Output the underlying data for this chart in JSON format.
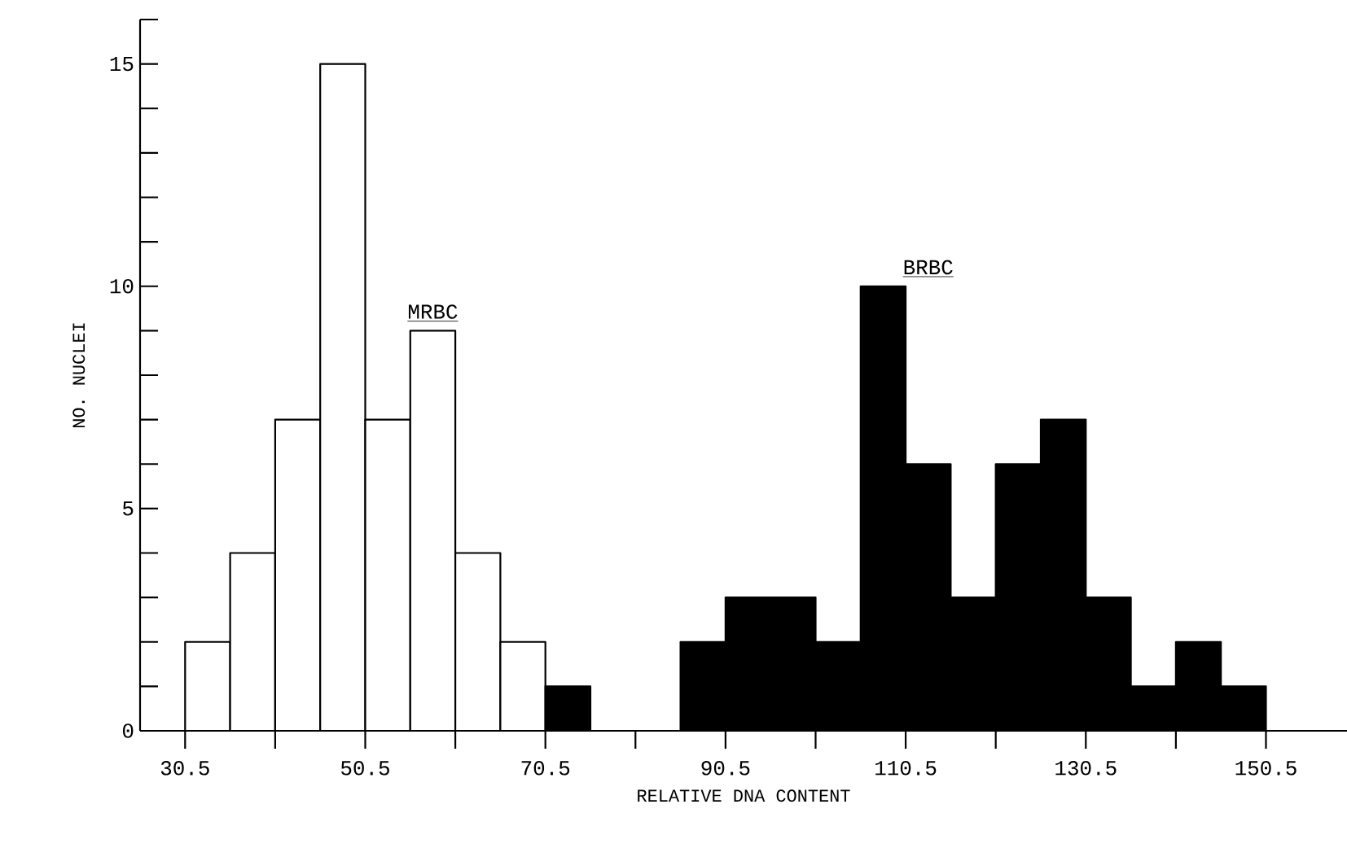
{
  "chart_data": {
    "type": "histogram",
    "xlabel": "RELATIVE DNA CONTENT",
    "ylabel": "NO. NUCLEI",
    "bins": [
      30.5,
      35.5,
      40.5,
      45.5,
      50.5,
      55.5,
      60.5,
      65.5,
      70.5,
      75.5,
      80.5,
      85.5,
      90.5,
      95.5,
      100.5,
      105.5,
      110.5,
      115.5,
      120.5,
      125.5,
      130.5,
      135.5,
      140.5,
      145.5,
      150.5
    ],
    "series": [
      {
        "name": "MRBC",
        "color": "#ffffff",
        "values": [
          2,
          4,
          7,
          15,
          7,
          9,
          4,
          2,
          null,
          null,
          null,
          null,
          null,
          null,
          null,
          null,
          null,
          null,
          null,
          null,
          null,
          null,
          null,
          null
        ]
      },
      {
        "name": "BRBC",
        "color": "#000000",
        "values": [
          null,
          null,
          null,
          null,
          null,
          null,
          null,
          null,
          1,
          null,
          null,
          2,
          3,
          3,
          2,
          10,
          6,
          3,
          6,
          7,
          3,
          1,
          2,
          1
        ]
      }
    ],
    "xlim": [
      25.5,
      159.5
    ],
    "ylim": [
      0,
      16
    ],
    "xticks": [
      30.5,
      {
        "value": 40.5,
        "label": null
      },
      50.5,
      {
        "value": 60.5,
        "label": null
      },
      70.5,
      {
        "value": 80.5,
        "label": null
      },
      90.5,
      {
        "value": 100.5,
        "label": null
      },
      110.5,
      {
        "value": 120.5,
        "label": null
      },
      130.5,
      {
        "value": 140.5,
        "label": null
      },
      150.5
    ],
    "yticks": [
      0,
      {
        "value": 1,
        "label": null
      },
      {
        "value": 2,
        "label": null
      },
      {
        "value": 3,
        "label": null
      },
      {
        "value": 4,
        "label": null
      },
      5,
      {
        "value": 6,
        "label": null
      },
      {
        "value": 7,
        "label": null
      },
      {
        "value": 8,
        "label": null
      },
      {
        "value": 9,
        "label": null
      },
      10,
      {
        "value": 11,
        "label": null
      },
      {
        "value": 12,
        "label": null
      },
      {
        "value": 13,
        "label": null
      },
      {
        "value": 14,
        "label": null
      },
      15,
      {
        "value": 16,
        "label": null
      }
    ],
    "grid": false
  }
}
